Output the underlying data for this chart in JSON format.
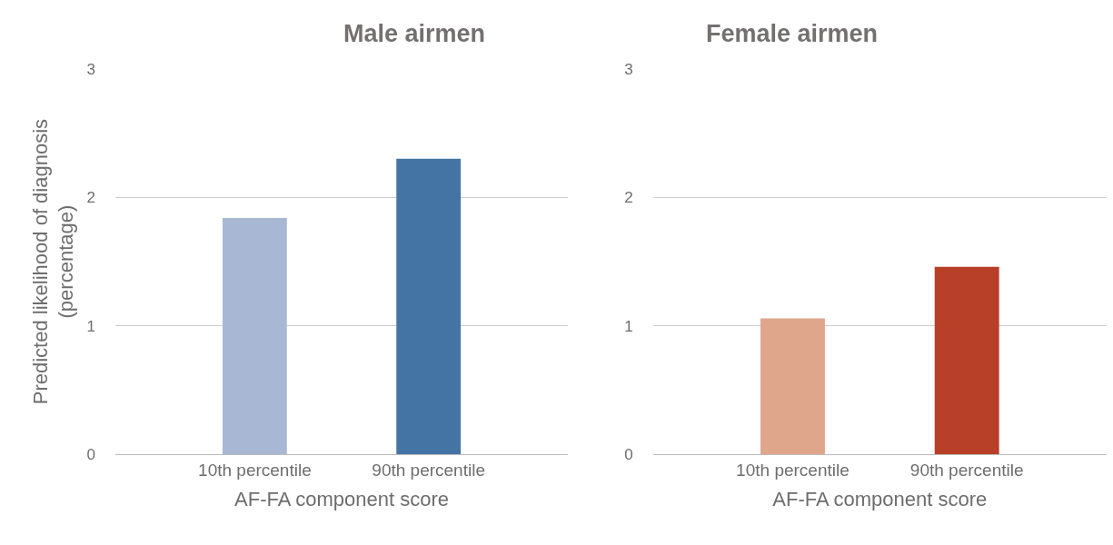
{
  "chart_data": [
    {
      "type": "bar",
      "title": "Male airmen",
      "xlabel": "AF-FA component score",
      "ylabel": "Predicted likelihood of diagnosis\n(percentage)",
      "categories": [
        "10th percentile",
        "90th percentile"
      ],
      "values": [
        1.84,
        2.3
      ],
      "colors": [
        "#a8b8d4",
        "#4374a3"
      ],
      "ylim": [
        0,
        3
      ],
      "yticks": [
        0,
        1,
        2,
        3
      ],
      "grid": "y"
    },
    {
      "type": "bar",
      "title": "Female airmen",
      "xlabel": "AF-FA component score",
      "categories": [
        "10th percentile",
        "90th percentile"
      ],
      "values": [
        1.06,
        1.46
      ],
      "colors": [
        "#e0a68c",
        "#b84028"
      ],
      "ylim": [
        0,
        3
      ],
      "yticks": [
        0,
        1,
        2,
        3
      ],
      "grid": "y"
    }
  ]
}
